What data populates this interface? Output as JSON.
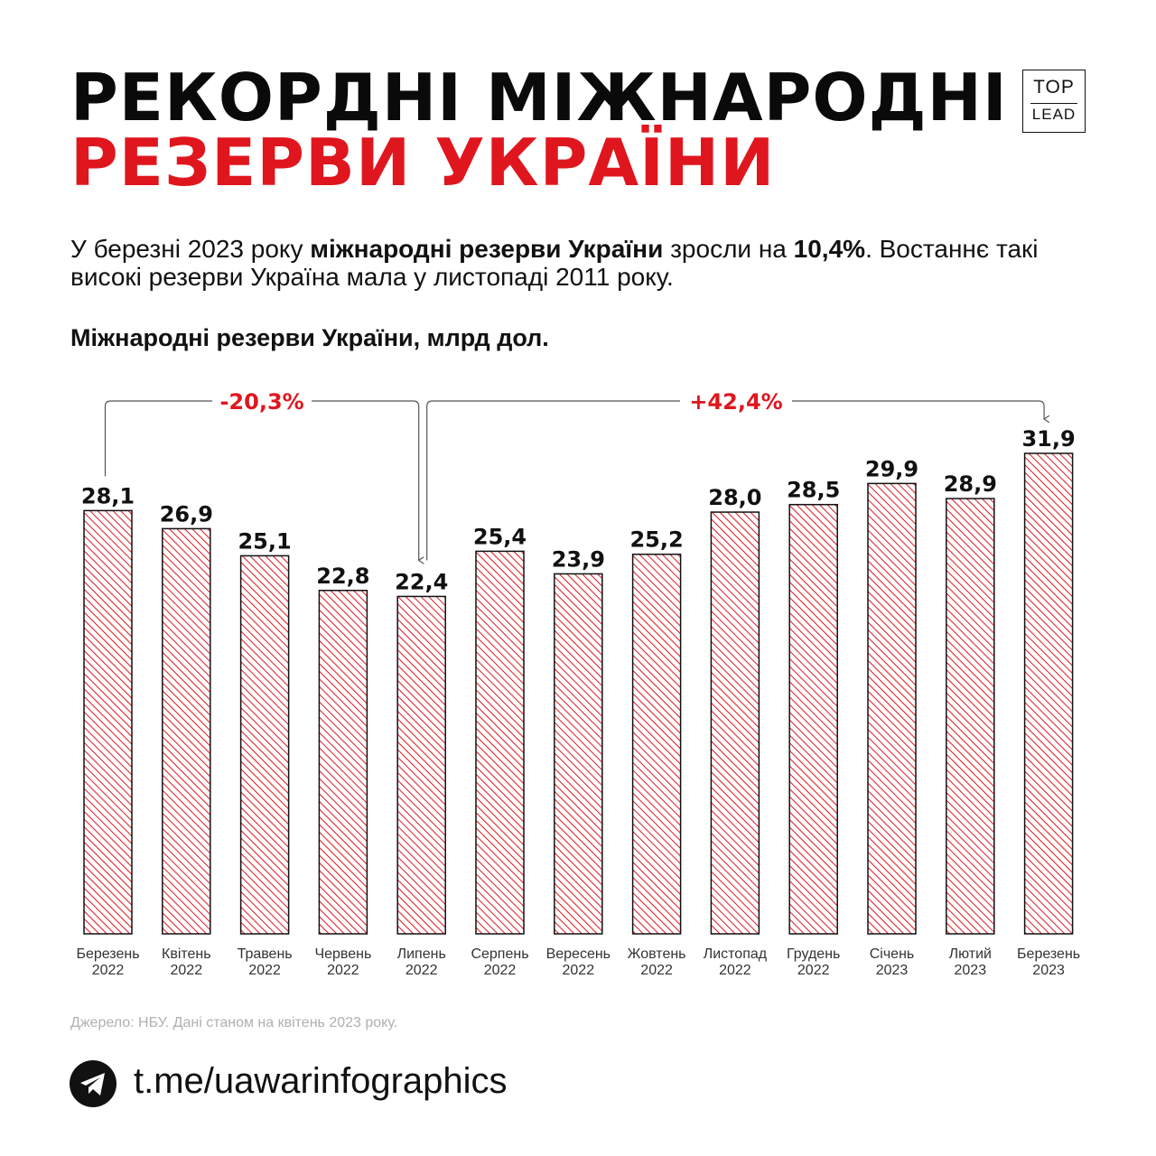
{
  "title": {
    "line1": "РЕКОРДНІ МІЖНАРОДНІ",
    "line2": "РЕЗЕРВИ УКРАЇНИ"
  },
  "logo": {
    "top": "TOP",
    "lead": "LEAD"
  },
  "intro": {
    "part1": "У березні 2023 року ",
    "bold1": "міжнародні резерви України",
    "part2": " зросли на ",
    "bold2": "10,4%",
    "part3": ". Востаннє такі високі резерви Україна мала у листопаді 2011 року."
  },
  "subtitle": "Міжнародні резерви України, млрд дол.",
  "colors": {
    "accent": "#e0161e",
    "bar_fill": "#fde8e8",
    "text": "#111111"
  },
  "chart_data": {
    "type": "bar",
    "title": "Міжнародні резерви України, млрд дол.",
    "categories": [
      [
        "Березень",
        "2022"
      ],
      [
        "Квітень",
        "2022"
      ],
      [
        "Травень",
        "2022"
      ],
      [
        "Червень",
        "2022"
      ],
      [
        "Липень",
        "2022"
      ],
      [
        "Серпень",
        "2022"
      ],
      [
        "Вересень",
        "2022"
      ],
      [
        "Жовтень",
        "2022"
      ],
      [
        "Листопад",
        "2022"
      ],
      [
        "Грудень",
        "2022"
      ],
      [
        "Січень",
        "2023"
      ],
      [
        "Лютий",
        "2023"
      ],
      [
        "Березень",
        "2023"
      ]
    ],
    "values": [
      28.1,
      26.9,
      25.1,
      22.8,
      22.4,
      25.4,
      23.9,
      25.2,
      28.0,
      28.5,
      29.9,
      28.9,
      31.9
    ],
    "value_labels": [
      "28,1",
      "26,9",
      "25,1",
      "22,8",
      "22,4",
      "25,4",
      "23,9",
      "25,2",
      "28,0",
      "28,5",
      "29,9",
      "28,9",
      "31,9"
    ],
    "ylim": [
      0,
      31.9
    ],
    "xlabel": "",
    "ylabel": "",
    "annotations": [
      {
        "text": "-20,3%",
        "from_index": 0,
        "to_index": 4
      },
      {
        "text": "+42,4%",
        "from_index": 4,
        "to_index": 12
      }
    ]
  },
  "source": "Джерело: НБУ. Дані станом на квітень 2023 року.",
  "footer": {
    "link": "t.me/uawarinfographics"
  }
}
